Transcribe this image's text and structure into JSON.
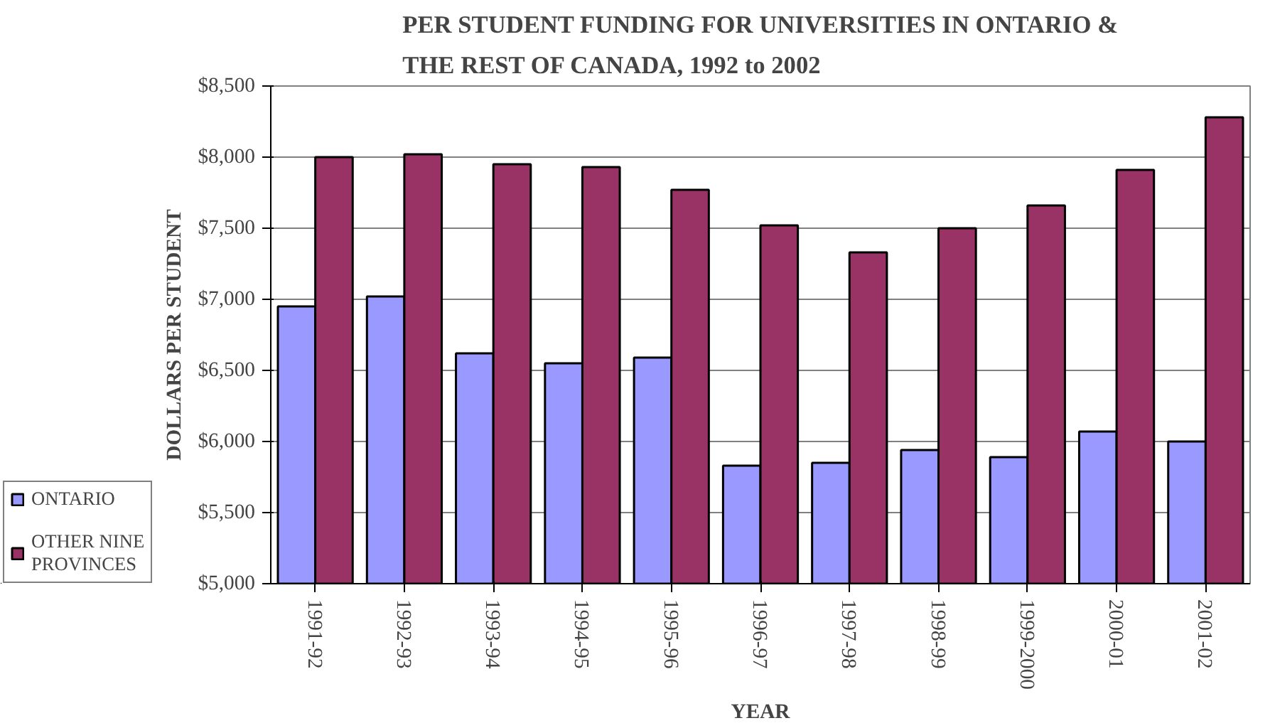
{
  "chart_data": {
    "type": "bar",
    "title": "PER STUDENT FUNDING FOR UNIVERSITIES IN ONTARIO &\nTHE REST OF CANADA, 1992 to 2002",
    "xlabel": "YEAR",
    "ylabel": "DOLLARS PER STUDENT",
    "categories": [
      "1991-92",
      "1992-93",
      "1993-94",
      "1994-95",
      "1995-96",
      "1996-97",
      "1997-98",
      "1998-99",
      "1999-2000",
      "2000-01",
      "2001-02"
    ],
    "series": [
      {
        "name": "ONTARIO",
        "color": "#9999ff",
        "values": [
          6950,
          7020,
          6620,
          6550,
          6590,
          5830,
          5850,
          5940,
          5890,
          6070,
          6000
        ]
      },
      {
        "name": "OTHER NINE\nPROVINCES",
        "color": "#993366",
        "values": [
          8000,
          8020,
          7950,
          7930,
          7770,
          7520,
          7330,
          7500,
          7660,
          7910,
          8280
        ]
      }
    ],
    "ylim": [
      5000,
      8500
    ],
    "yticks": [
      {
        "value": 5000,
        "label": "$5,000"
      },
      {
        "value": 5500,
        "label": "$5,500"
      },
      {
        "value": 6000,
        "label": "$6,000"
      },
      {
        "value": 6500,
        "label": "$6,500"
      },
      {
        "value": 7000,
        "label": "$7,000"
      },
      {
        "value": 7500,
        "label": "$7,500"
      },
      {
        "value": 8000,
        "label": "$8,000"
      },
      {
        "value": 8500,
        "label": "$8,500"
      }
    ],
    "grid": "y",
    "legend": "bottom left"
  }
}
